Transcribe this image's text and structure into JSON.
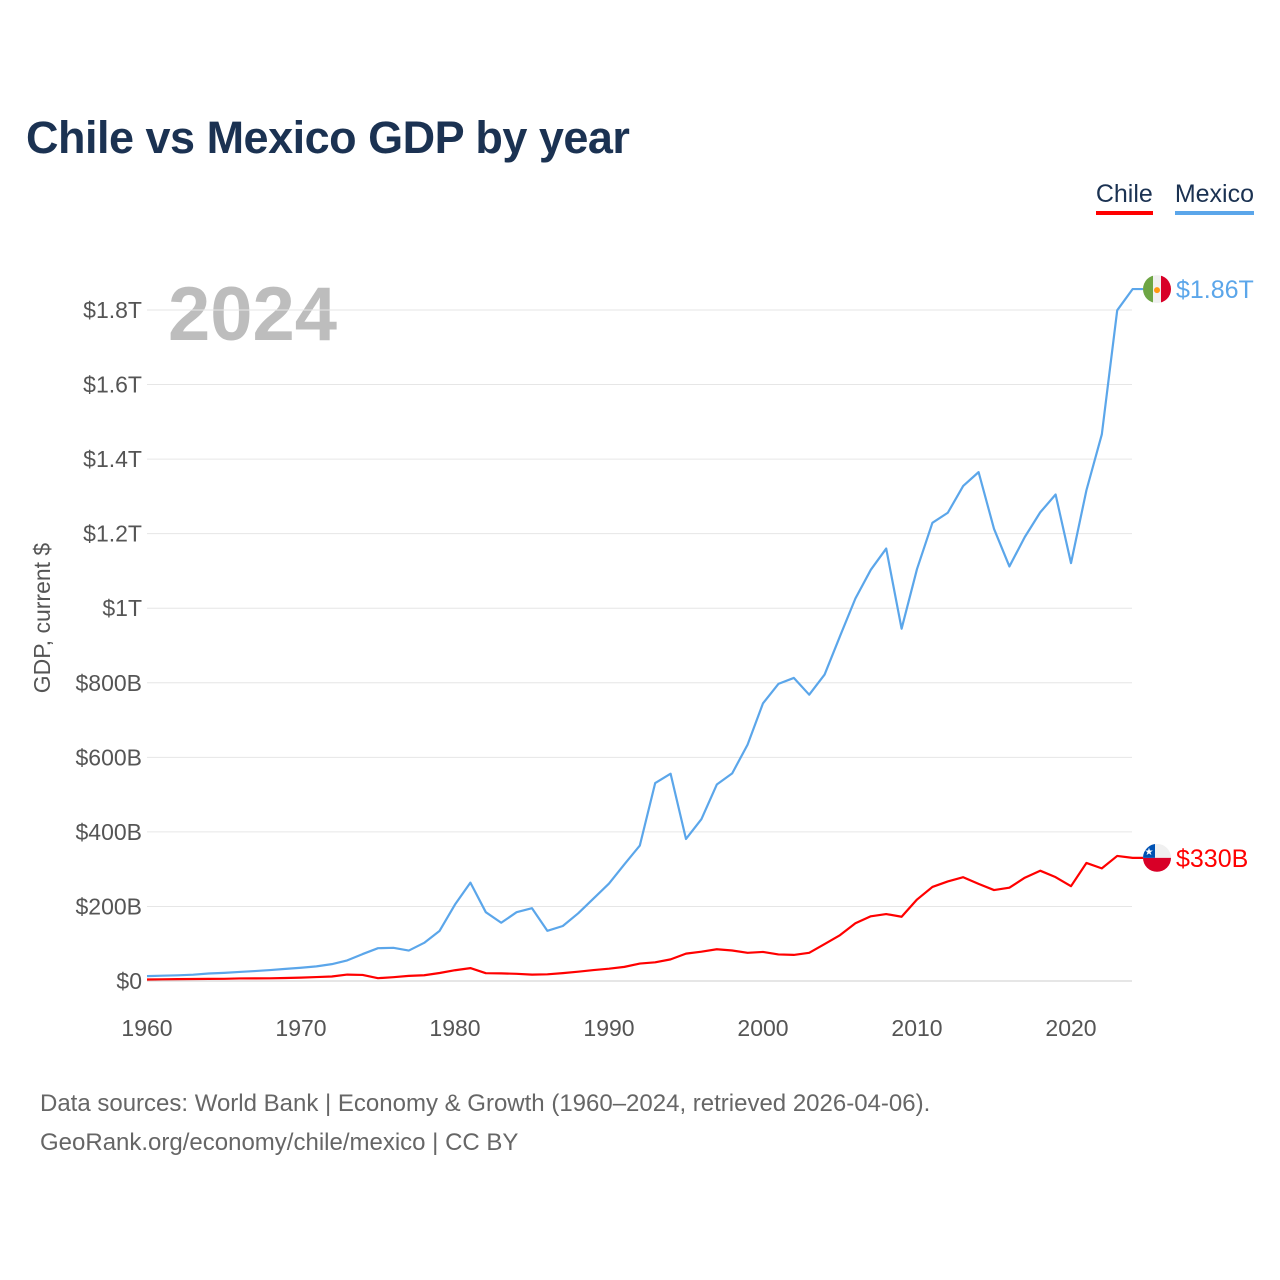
{
  "title": "Chile vs Mexico GDP by year",
  "legend": [
    {
      "label": "Chile",
      "color": "#ff0000"
    },
    {
      "label": "Mexico",
      "color": "#5ba6ea"
    }
  ],
  "footer": {
    "line1": "Data sources: World Bank | Economy & Growth (1960–2024, retrieved 2026-04-06).",
    "line2": "GeoRank.org/economy/chile/mexico | CC BY"
  },
  "chart_data": {
    "type": "line",
    "title": "Chile vs Mexico GDP by year",
    "ylabel": "GDP, current $",
    "xlabel": "",
    "year_label": "2024",
    "xlim": [
      1960,
      2024
    ],
    "ylim": [
      0,
      2000
    ],
    "y_unit": "billions USD",
    "yticks": [
      0,
      200,
      400,
      600,
      800,
      1000,
      1200,
      1400,
      1600,
      1800
    ],
    "ytick_labels": [
      "$0",
      "$200B",
      "$400B",
      "$600B",
      "$800B",
      "$1T",
      "$1.2T",
      "$1.4T",
      "$1.6T",
      "$1.8T"
    ],
    "xticks": [
      1960,
      1970,
      1980,
      1990,
      2000,
      2010,
      2020
    ],
    "xtick_labels": [
      "1960",
      "1970",
      "1980",
      "1990",
      "2000",
      "2010",
      "2020"
    ],
    "grid": true,
    "legend_position": "top-right",
    "x_start": 1960,
    "series": [
      {
        "name": "Mexico",
        "color": "#5ba6ea",
        "end_label": "$1.86T",
        "flag": "mexico-flag",
        "values": [
          13.0,
          14.2,
          15.2,
          17.0,
          20.1,
          21.8,
          24.3,
          26.6,
          29.4,
          32.5,
          35.5,
          39.2,
          45.2,
          55.3,
          72.2,
          88.0,
          89.0,
          81.6,
          102.4,
          134.5,
          205.1,
          263.9,
          184.6,
          156.2,
          184.5,
          195.2,
          134.6,
          147.5,
          181.6,
          221.4,
          261.3,
          313.1,
          363.2,
          531.0,
          556.0,
          381.0,
          434.0,
          527.0,
          557.0,
          634.0,
          745.0,
          797.0,
          813.0,
          768.0,
          822.0,
          925.0,
          1026.0,
          1103.0,
          1160.0,
          945.0,
          1105.0,
          1229.0,
          1256.0,
          1328.0,
          1365.0,
          1213.0,
          1112.0,
          1191.0,
          1257.0,
          1305.0,
          1121.0,
          1316.0,
          1466.0,
          1799.0,
          1856.0
        ]
      },
      {
        "name": "Chile",
        "color": "#ff0000",
        "end_label": "$330B",
        "flag": "chile-flag",
        "values": [
          4.1,
          4.5,
          5.0,
          5.3,
          5.6,
          5.9,
          6.9,
          7.1,
          7.2,
          8.1,
          9.1,
          10.6,
          12.1,
          17.2,
          16.2,
          7.6,
          10.3,
          13.8,
          15.4,
          21.5,
          28.9,
          34.6,
          21.0,
          20.4,
          19.3,
          17.1,
          18.0,
          21.2,
          25.0,
          29.3,
          33.1,
          37.9,
          46.7,
          50.1,
          58.0,
          73.5,
          78.6,
          85.2,
          81.8,
          75.6,
          78.0,
          71.3,
          70.0,
          75.6,
          99.2,
          123.0,
          154.8,
          173.6,
          179.6,
          172.4,
          218.5,
          252.3,
          267.1,
          278.4,
          260.5,
          243.9,
          250.4,
          277.0,
          295.9,
          278.6,
          254.3,
          316.6,
          302.1,
          335.5,
          330.3
        ]
      }
    ]
  }
}
